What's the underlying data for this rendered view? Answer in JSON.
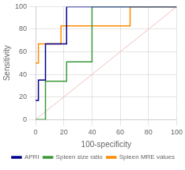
{
  "chart_data": {
    "type": "line",
    "xlabel": "100-specificity",
    "ylabel": "Sensitivity",
    "xlim": [
      0,
      100
    ],
    "ylim": [
      0,
      100
    ],
    "xticks": [
      0,
      20,
      40,
      60,
      80,
      100
    ],
    "yticks": [
      0,
      20,
      40,
      60,
      80,
      100
    ],
    "grid": true,
    "legend": "lower right",
    "series": [
      {
        "x": [
          0,
          100
        ],
        "values": [
          0,
          100
        ],
        "color": "#f0c0c0"
      },
      {
        "name": "APRI",
        "color": "#00008B",
        "line_style": "steps",
        "x": [
          0,
          2,
          2,
          7,
          7,
          22,
          22,
          100
        ],
        "values": [
          17,
          17,
          35,
          35,
          67,
          67,
          100,
          100
        ]
      },
      {
        "name": "Spleen size ratio",
        "color": "#3a9a3a",
        "line_style": "steps",
        "x": [
          0,
          7,
          7,
          22,
          22,
          40,
          40,
          100
        ],
        "values": [
          0,
          0,
          34,
          34,
          51,
          51,
          100,
          100
        ]
      },
      {
        "name": "Spleen MRE values",
        "color": "#FF8C00",
        "line_style": "steps",
        "x": [
          0,
          2,
          2,
          18,
          18,
          67,
          67,
          100
        ],
        "values": [
          50,
          50,
          67,
          67,
          83,
          83,
          100,
          100
        ]
      }
    ]
  }
}
